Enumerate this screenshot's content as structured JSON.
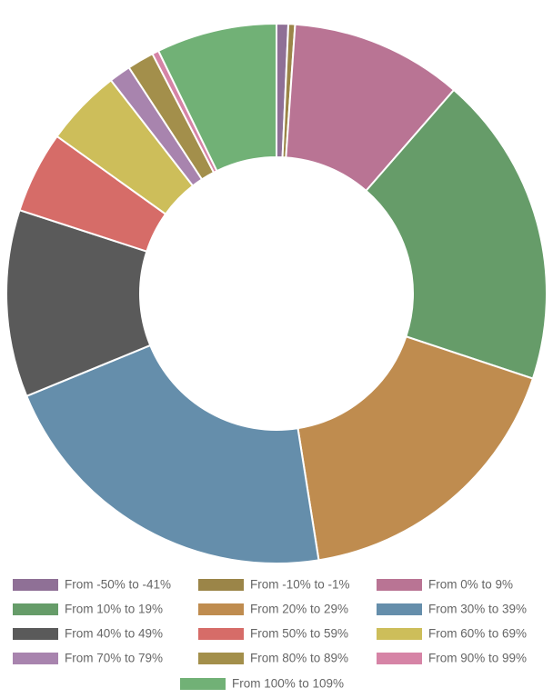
{
  "chart_data": {
    "type": "donut",
    "categories": [
      "From -50% to -41%",
      "From -10% to -1%",
      "From 0% to 9%",
      "From 10% to 19%",
      "From 20% to 29%",
      "From 30% to 39%",
      "From 40% to 49%",
      "From 50% to 59%",
      "From 60% to 69%",
      "From 70% to 79%",
      "From 80% to 89%",
      "From 90% to 99%",
      "From 100% to 109%"
    ],
    "values": [
      0.7,
      0.4,
      10.3,
      18.7,
      17.4,
      21.3,
      11.2,
      4.9,
      4.6,
      1.3,
      1.6,
      0.4,
      7.2
    ],
    "colors": [
      "#8f7096",
      "#9b8548",
      "#b97494",
      "#669c69",
      "#bf8c4f",
      "#658eab",
      "#5a5a5a",
      "#d66c68",
      "#cdbe5a",
      "#a884ae",
      "#a38f4b",
      "#d684a6",
      "#71b176"
    ]
  }
}
